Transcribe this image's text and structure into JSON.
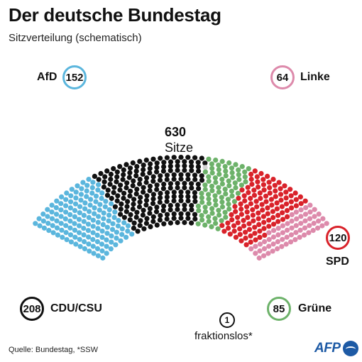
{
  "title": "Der deutsche Bundestag",
  "subtitle": "Sitzverteilung (schematisch)",
  "total": {
    "seats": "630",
    "label": "Sitze"
  },
  "source": "Quelle: Bundestag, *SSW",
  "logo_text": "AFP",
  "chart_data": {
    "type": "parliament",
    "title": "Der deutsche Bundestag",
    "subtitle": "Sitzverteilung (schematisch)",
    "total": 630,
    "parties": [
      {
        "name": "AfD",
        "seats": 152,
        "color": "#5bb6dd"
      },
      {
        "name": "CDU/CSU",
        "seats": 208,
        "color": "#111111"
      },
      {
        "name": "fraktionslos*",
        "seats": 1,
        "color": "#d4d4d4"
      },
      {
        "name": "Grüne",
        "seats": 85,
        "color": "#6db26a"
      },
      {
        "name": "SPD",
        "seats": 120,
        "color": "#d9222a"
      },
      {
        "name": "Linke",
        "seats": 64,
        "color": "#dd8aab"
      }
    ]
  }
}
